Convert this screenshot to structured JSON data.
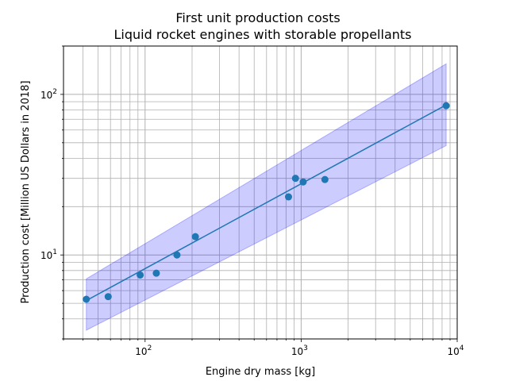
{
  "chart_data": {
    "type": "scatter",
    "title": "First unit production costs",
    "subtitle": "Liquid rocket engines with storable propellants",
    "xlabel": "Engine dry mass [kg]",
    "ylabel": "Production cost [Million US Dollars in 2018]",
    "xscale": "log",
    "yscale": "log",
    "xlim": [
      30,
      10000
    ],
    "ylim": [
      3,
      200
    ],
    "grid": true,
    "x_tick_labels": [
      {
        "base": "10",
        "exp": "2",
        "value": 100
      },
      {
        "base": "10",
        "exp": "3",
        "value": 1000
      },
      {
        "base": "10",
        "exp": "4",
        "value": 10000
      }
    ],
    "y_tick_labels": [
      {
        "base": "10",
        "exp": "1",
        "value": 10
      },
      {
        "base": "10",
        "exp": "2",
        "value": 100
      }
    ],
    "points": {
      "x": [
        42,
        58,
        93,
        118,
        160,
        210,
        830,
        920,
        1030,
        1420,
        8500
      ],
      "y": [
        5.3,
        5.5,
        7.5,
        7.7,
        10.0,
        13.0,
        23.0,
        30.0,
        28.5,
        29.5,
        85.0
      ]
    },
    "fit_line": {
      "x": [
        42,
        8500
      ],
      "y": [
        5.2,
        86.0
      ]
    },
    "confidence_band": {
      "x": [
        42,
        8500
      ],
      "lower": [
        3.4,
        48.0
      ],
      "upper": [
        7.1,
        155.0
      ]
    },
    "colors": {
      "points": "#1f77b4",
      "line": "#1f77b4",
      "band_fill": "#0000ff",
      "band_opacity": 0.2,
      "grid": "#b0b0b0"
    }
  }
}
